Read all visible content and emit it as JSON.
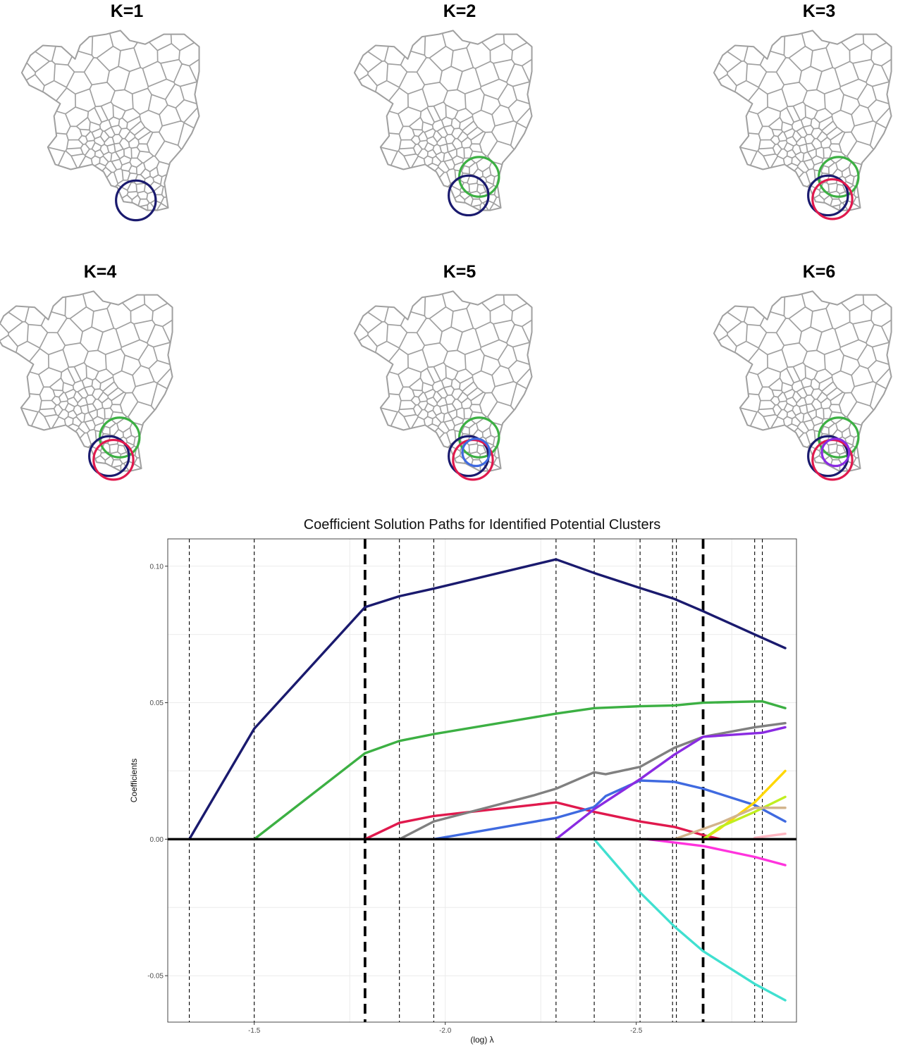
{
  "panels": [
    {
      "title": "K=1",
      "circles": [
        "#1a1a6e"
      ]
    },
    {
      "title": "K=2",
      "circles": [
        "#3cb043",
        "#1a1a6e"
      ]
    },
    {
      "title": "K=3",
      "circles": [
        "#3cb043",
        "#1a1a6e",
        "#e0194d"
      ]
    },
    {
      "title": "K=4",
      "circles": [
        "#3cb043",
        "#1a1a6e",
        "#e0194d"
      ]
    },
    {
      "title": "K=5",
      "circles": [
        "#3cb043",
        "#1a1a6e",
        "#e0194d",
        "#3f6ae0"
      ]
    },
    {
      "title": "K=6",
      "circles": [
        "#3cb043",
        "#1a1a6e",
        "#e0194d",
        "#8a2be2"
      ]
    }
  ],
  "map_style": {
    "border_color": "#a0a0a0"
  },
  "chart_data": {
    "type": "line",
    "title": "Coefficient Solution Paths for Identified Potential Clusters",
    "xlabel": "(log) λ",
    "ylabel": "Coefficients",
    "xlim": [
      -1.2736,
      -2.9194
    ],
    "ylim": [
      -0.067,
      0.11
    ],
    "x_ticks": [
      "-1.5",
      "-2.0",
      "-2.5"
    ],
    "x_tick_values": [
      -1.5,
      -2.0,
      -2.5
    ],
    "y_ticks": [
      "-0.05",
      "0.00",
      "0.05",
      "0.10"
    ],
    "y_tick_values": [
      -0.05,
      0.0,
      0.05,
      0.1
    ],
    "grid": true,
    "vlines": [
      {
        "x": -1.33,
        "style": "thin"
      },
      {
        "x": -1.5,
        "style": "thin"
      },
      {
        "x": -1.79,
        "style": "thick"
      },
      {
        "x": -1.88,
        "style": "thin"
      },
      {
        "x": -1.97,
        "style": "thin"
      },
      {
        "x": -2.29,
        "style": "thin"
      },
      {
        "x": -2.39,
        "style": "thin"
      },
      {
        "x": -2.51,
        "style": "thin"
      },
      {
        "x": -2.595,
        "style": "thin"
      },
      {
        "x": -2.605,
        "style": "thin"
      },
      {
        "x": -2.675,
        "style": "thick"
      },
      {
        "x": -2.81,
        "style": "thin"
      },
      {
        "x": -2.83,
        "style": "thin"
      }
    ],
    "zero_line": 0,
    "series": [
      {
        "color": "#1a1a6e",
        "points": [
          [
            -1.33,
            0.0
          ],
          [
            -1.5,
            0.0405
          ],
          [
            -1.79,
            0.085
          ],
          [
            -1.88,
            0.089
          ],
          [
            -1.97,
            0.0918
          ],
          [
            -2.29,
            0.1025
          ],
          [
            -2.39,
            0.0975
          ],
          [
            -2.51,
            0.092
          ],
          [
            -2.6,
            0.088
          ],
          [
            -2.675,
            0.0835
          ],
          [
            -2.81,
            0.075
          ],
          [
            -2.89,
            0.07
          ]
        ]
      },
      {
        "color": "#3cb043",
        "points": [
          [
            -1.5,
            0.0
          ],
          [
            -1.79,
            0.0315
          ],
          [
            -1.88,
            0.036
          ],
          [
            -1.97,
            0.0385
          ],
          [
            -2.29,
            0.046
          ],
          [
            -2.39,
            0.048
          ],
          [
            -2.51,
            0.0487
          ],
          [
            -2.6,
            0.049
          ],
          [
            -2.675,
            0.05
          ],
          [
            -2.83,
            0.0505
          ],
          [
            -2.89,
            0.048
          ]
        ]
      },
      {
        "color": "#e0194d",
        "points": [
          [
            -1.79,
            0.0
          ],
          [
            -1.88,
            0.006
          ],
          [
            -1.97,
            0.0085
          ],
          [
            -2.29,
            0.0135
          ],
          [
            -2.39,
            0.01
          ],
          [
            -2.51,
            0.0065
          ],
          [
            -2.6,
            0.0045
          ],
          [
            -2.675,
            0.0015
          ],
          [
            -2.72,
            0.0
          ]
        ]
      },
      {
        "color": "#808080",
        "points": [
          [
            -1.88,
            0.0
          ],
          [
            -1.97,
            0.0065
          ],
          [
            -2.23,
            0.016
          ],
          [
            -2.29,
            0.0185
          ],
          [
            -2.39,
            0.0245
          ],
          [
            -2.42,
            0.0238
          ],
          [
            -2.51,
            0.0265
          ],
          [
            -2.6,
            0.0335
          ],
          [
            -2.675,
            0.0375
          ],
          [
            -2.81,
            0.041
          ],
          [
            -2.89,
            0.0425
          ]
        ]
      },
      {
        "color": "#3f6ae0",
        "points": [
          [
            -1.97,
            0.0
          ],
          [
            -2.29,
            0.0078
          ],
          [
            -2.39,
            0.0118
          ],
          [
            -2.42,
            0.0158
          ],
          [
            -2.51,
            0.0215
          ],
          [
            -2.6,
            0.021
          ],
          [
            -2.675,
            0.0185
          ],
          [
            -2.81,
            0.0125
          ],
          [
            -2.89,
            0.0065
          ]
        ]
      },
      {
        "color": "#8a2be2",
        "points": [
          [
            -2.29,
            0.0
          ],
          [
            -2.39,
            0.011
          ],
          [
            -2.51,
            0.022
          ],
          [
            -2.6,
            0.031
          ],
          [
            -2.675,
            0.0375
          ],
          [
            -2.83,
            0.039
          ],
          [
            -2.89,
            0.041
          ]
        ]
      },
      {
        "color": "#40e0d0",
        "points": [
          [
            -2.39,
            0.0
          ],
          [
            -2.51,
            -0.0195
          ],
          [
            -2.6,
            -0.032
          ],
          [
            -2.675,
            -0.041
          ],
          [
            -2.81,
            -0.053
          ],
          [
            -2.89,
            -0.059
          ]
        ]
      },
      {
        "color": "#ff33dd",
        "points": [
          [
            -2.53,
            0.0
          ],
          [
            -2.675,
            -0.0025
          ],
          [
            -2.81,
            -0.0065
          ],
          [
            -2.89,
            -0.0095
          ]
        ]
      },
      {
        "color": "#ffd700",
        "points": [
          [
            -2.675,
            0.0
          ],
          [
            -2.72,
            0.004
          ],
          [
            -2.81,
            0.0135
          ],
          [
            -2.89,
            0.025
          ]
        ]
      },
      {
        "color": "#c0ee20",
        "points": [
          [
            -2.675,
            0.0
          ],
          [
            -2.72,
            0.0045
          ],
          [
            -2.81,
            0.01
          ],
          [
            -2.89,
            0.0155
          ]
        ]
      },
      {
        "color": "#d2b48c",
        "points": [
          [
            -2.6,
            0.0
          ],
          [
            -2.72,
            0.006
          ],
          [
            -2.81,
            0.0115
          ],
          [
            -2.89,
            0.0115
          ]
        ]
      },
      {
        "color": "#ffb6c1",
        "points": [
          [
            -2.81,
            0.0005
          ],
          [
            -2.89,
            0.002
          ]
        ]
      }
    ]
  }
}
